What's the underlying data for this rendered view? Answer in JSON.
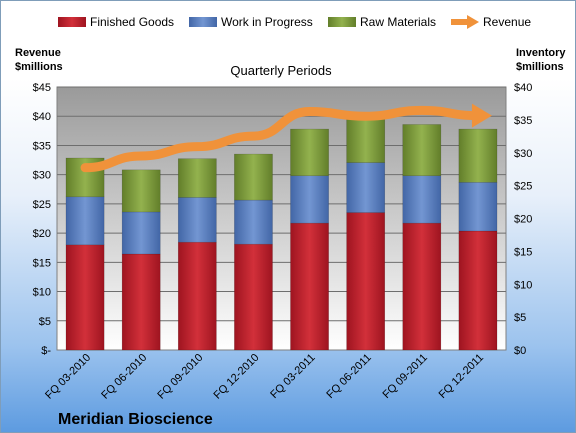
{
  "chart_data": {
    "type": "bar",
    "subtype": "stacked-bar-with-line",
    "title": "Quarterly Periods",
    "categories": [
      "FQ 03-2010",
      "FQ 06-2010",
      "FQ 09-2010",
      "FQ 12-2010",
      "FQ 03-2011",
      "FQ 06-2011",
      "FQ 09-2011",
      "FQ 12-2011"
    ],
    "series": [
      {
        "name": "Finished Goods",
        "axis": "right",
        "color": "#c0202a",
        "values": [
          16.0,
          14.6,
          16.4,
          16.1,
          19.3,
          20.9,
          19.3,
          18.1
        ]
      },
      {
        "name": "Work in Progress",
        "axis": "right",
        "color": "#5b80bf",
        "values": [
          7.3,
          6.4,
          6.8,
          6.7,
          7.2,
          7.6,
          7.2,
          7.4
        ]
      },
      {
        "name": "Raw Materials",
        "axis": "right",
        "color": "#7f9e3e",
        "values": [
          5.9,
          6.4,
          5.9,
          7.0,
          7.1,
          7.5,
          7.8,
          8.1
        ]
      },
      {
        "name": "Revenue",
        "axis": "left",
        "type": "line",
        "color": "#f0923a",
        "values": [
          31.2,
          33.2,
          34.8,
          36.6,
          40.8,
          40.0,
          41.0,
          40.1
        ]
      }
    ],
    "y_left": {
      "label_line1": "Revenue",
      "label_line2": "$millions",
      "min": 0,
      "max": 45,
      "ticks": [
        "$-",
        "$5",
        "$10",
        "$15",
        "$20",
        "$25",
        "$30",
        "$35",
        "$40",
        "$45"
      ]
    },
    "y_right": {
      "label_line1": "Inventory",
      "label_line2": "$millions",
      "min": 0,
      "max": 40,
      "ticks": [
        "$0",
        "$5",
        "$10",
        "$15",
        "$20",
        "$25",
        "$30",
        "$35",
        "$40"
      ]
    },
    "grid": true,
    "legend": "top"
  },
  "company": "Meridian Bioscience"
}
